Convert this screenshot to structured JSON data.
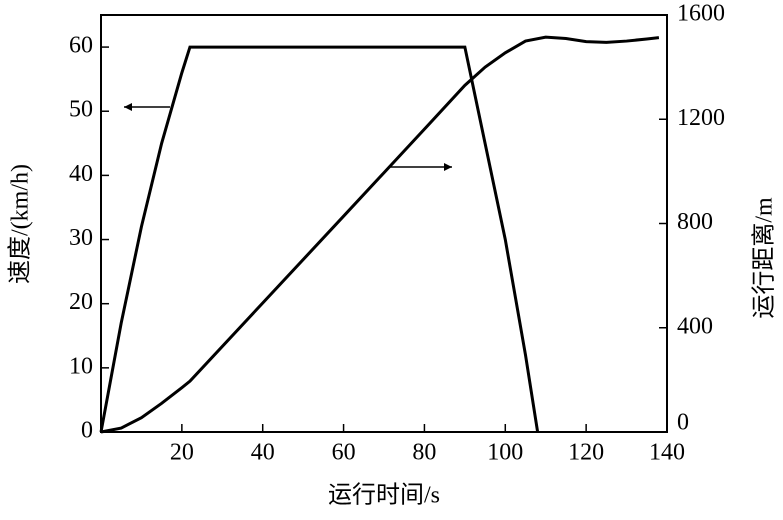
{
  "chart_data": {
    "type": "line",
    "xlabel": "运行时间/s",
    "ylabel": "速度/(km/h)",
    "y2label": "运行距离/m",
    "xlim": [
      0,
      140
    ],
    "xticks": [
      20,
      40,
      60,
      80,
      100,
      120,
      140
    ],
    "ylim": [
      0,
      65
    ],
    "yticks": [
      0,
      10,
      20,
      30,
      40,
      50,
      60
    ],
    "y2lim": [
      0,
      1600
    ],
    "y2ticks": [
      0,
      400,
      800,
      1200,
      1600
    ],
    "grid": false,
    "series": [
      {
        "color": "#000000",
        "axis": "y",
        "x": [
          0,
          5,
          10,
          15,
          20,
          22,
          90,
          95,
          100,
          105,
          108
        ],
        "values": [
          0,
          17,
          32,
          45,
          56,
          60,
          60,
          45,
          30,
          12,
          0
        ]
      },
      {
        "color": "#000000",
        "axis": "y2",
        "x": [
          0,
          5,
          10,
          15,
          20,
          22,
          40,
          60,
          80,
          90,
          95,
          100,
          105,
          110,
          115,
          120,
          125,
          130,
          135,
          138
        ],
        "values": [
          0,
          15,
          55,
          110,
          170,
          195,
          495,
          828,
          1162,
          1330,
          1400,
          1455,
          1500,
          1515,
          1510,
          1498,
          1495,
          1500,
          1508,
          1513
        ]
      }
    ]
  }
}
